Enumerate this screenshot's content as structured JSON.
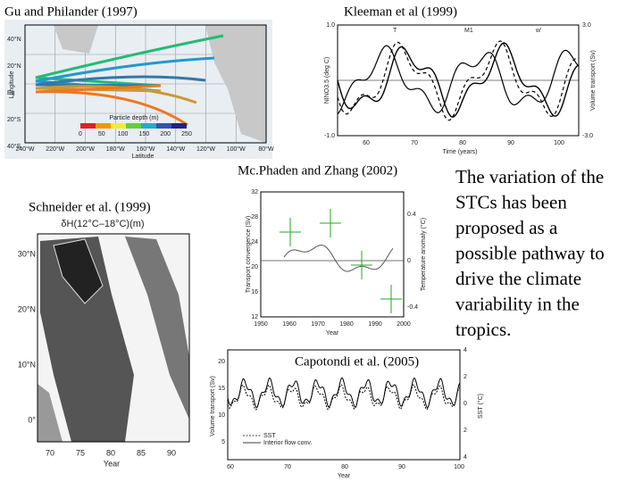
{
  "captions": {
    "gu": "Gu and Philander (1997)",
    "kleeman": "Kleeman et al (1999)",
    "mcphaden": "Mc.Phaden and Zhang (2002)",
    "schneider": "Schneider et al. (1999)",
    "capotondi": "Capotondi et al. (2005)"
  },
  "body_lines": [
    "The variation of the",
    "STCs has  been",
    "proposed as a",
    "possible pathway to",
    "drive the climate",
    "variability in the",
    "tropics."
  ],
  "gu_figure": {
    "lat_labels": [
      "40°N",
      "20°N",
      "Eq",
      "20°S",
      "40°S"
    ],
    "lon_labels": [
      "240°W",
      "220°W",
      "200°W",
      "180°W",
      "160°W",
      "140°W",
      "120°W",
      "100°W",
      "80°W"
    ],
    "y_label": "Longitude",
    "x_label": "Latitude",
    "colorbar_title": "Particle depth (m)",
    "colorbar_ticks": [
      "0",
      "50",
      "100",
      "150",
      "200",
      "250"
    ]
  },
  "kleeman_figure": {
    "y_label": "NINO3.5 (deg C)",
    "y2_label": "Volume transport (Sv)",
    "legend": [
      "T",
      "M1",
      "w'"
    ],
    "x_ticks": [
      "60",
      "70",
      "80",
      "90",
      "100"
    ],
    "x_label": "Time (years)",
    "y_ticks": [
      "1.0",
      "-1.0"
    ],
    "y2_ticks": [
      "3.0",
      "-3.0"
    ]
  },
  "mcphaden_figure": {
    "y_ticks": [
      "32",
      "28",
      "24",
      "20",
      "16",
      "12"
    ],
    "x_ticks": [
      "1950",
      "1960",
      "1970",
      "1980",
      "1990",
      "2000"
    ],
    "x_label": "Year",
    "y_label": "Transport convergence (Sv)",
    "y2_label": "Temperature anomaly (°C)",
    "y2_ticks": [
      "0.4",
      "0",
      "-0.4"
    ]
  },
  "schneider_figure": {
    "title": "δH(12°C–18°C)(m)",
    "lat_labels": [
      "30°N",
      "20°N",
      "10°N",
      "0°"
    ],
    "x_ticks": [
      "70",
      "75",
      "80",
      "85",
      "90"
    ],
    "x_label": "Year"
  },
  "capotondi_figure": {
    "y_label": "Volume transport (Sv)",
    "y2_label": "SST (°C)",
    "y_ticks": [
      "20",
      "15",
      "10",
      "5"
    ],
    "y2_ticks": [
      "4",
      "2",
      "0",
      "2",
      "4"
    ],
    "x_ticks": [
      "60",
      "70",
      "80",
      "90",
      "100"
    ],
    "x_label": "Year",
    "legend": [
      "SST",
      "Interior flow conv."
    ]
  }
}
